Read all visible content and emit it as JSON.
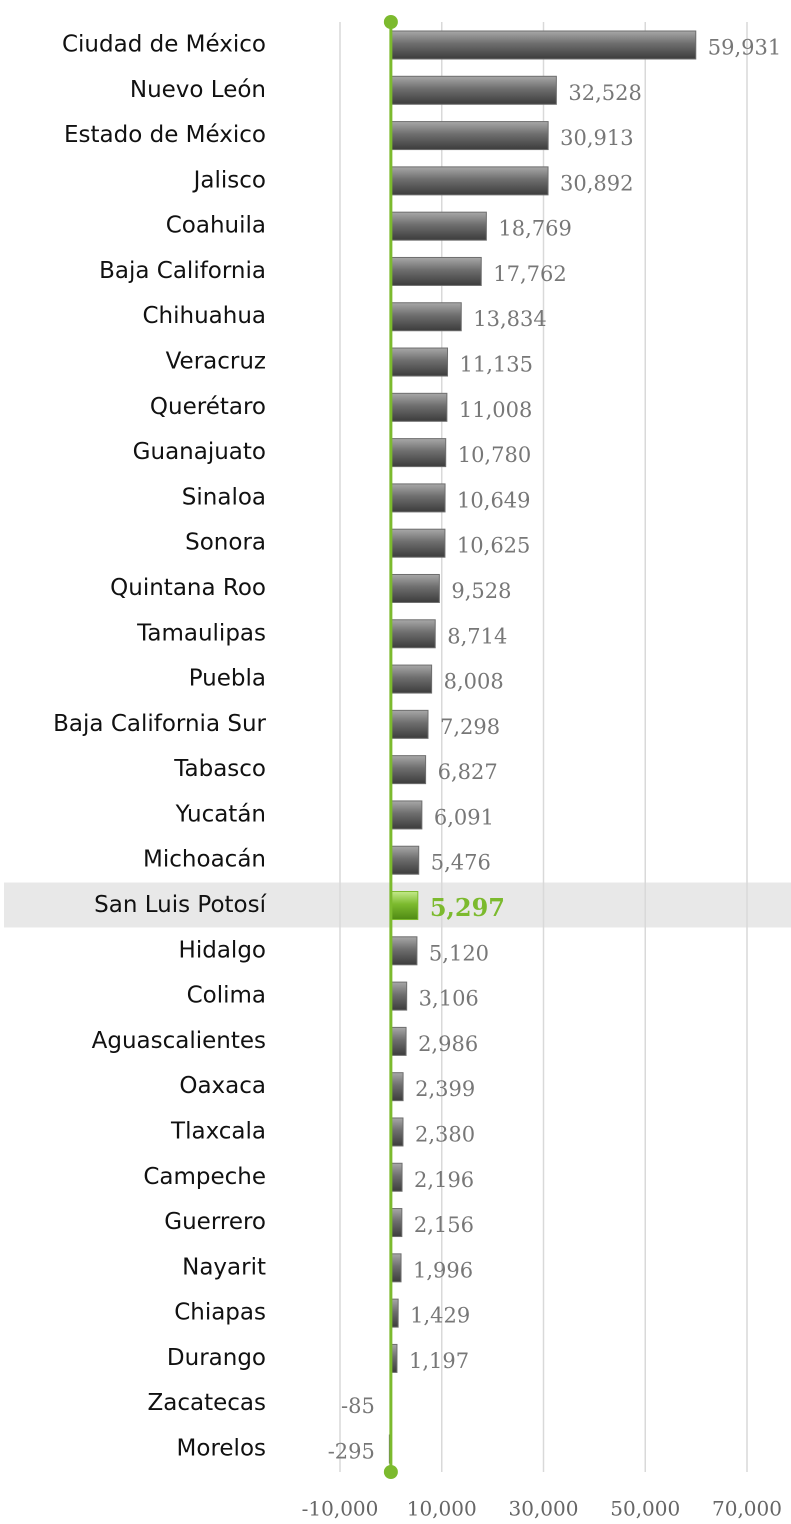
{
  "chart_data": {
    "type": "bar",
    "orientation": "horizontal",
    "categories": [
      "Ciudad de México",
      "Nuevo León",
      "Estado de México",
      "Jalisco",
      "Coahuila",
      "Baja California",
      "Chihuahua",
      "Veracruz",
      "Querétaro",
      "Guanajuato",
      "Sinaloa",
      "Sonora",
      "Quintana Roo",
      "Tamaulipas",
      "Puebla",
      "Baja California Sur",
      "Tabasco",
      "Yucatán",
      "Michoacán",
      "San Luis Potosí",
      "Hidalgo",
      "Colima",
      "Aguascalientes",
      "Oaxaca",
      "Tlaxcala",
      "Campeche",
      "Guerrero",
      "Nayarit",
      "Chiapas",
      "Durango",
      "Zacatecas",
      "Morelos"
    ],
    "values": [
      59931,
      32528,
      30913,
      30892,
      18769,
      17762,
      13834,
      11135,
      11008,
      10780,
      10649,
      10625,
      9528,
      8714,
      8008,
      7298,
      6827,
      6091,
      5476,
      5297,
      5120,
      3106,
      2986,
      2399,
      2380,
      2196,
      2156,
      1996,
      1429,
      1197,
      -85,
      -295
    ],
    "value_labels": [
      "59,931",
      "32,528",
      "30,913",
      "30,892",
      "18,769",
      "17,762",
      "13,834",
      "11,135",
      "11,008",
      "10,780",
      "10,649",
      "10,625",
      "9,528",
      "8,714",
      "8,008",
      "7,298",
      "6,827",
      "6,091",
      "5,476",
      "5,297",
      "5,120",
      "3,106",
      "2,986",
      "2,399",
      "2,380",
      "2,196",
      "2,156",
      "1,996",
      "1,429",
      "1,197",
      "-85",
      "-295"
    ],
    "color": "#6e6e6e",
    "highlight_index": 19,
    "highlight_color": "#7cba2e",
    "axis_color": "#7cba2e",
    "xlim": [
      -10000,
      70000
    ],
    "xticks": [
      {
        "value": -10000,
        "label": "-10,000"
      },
      {
        "value": 10000,
        "label": "10,000"
      },
      {
        "value": 30000,
        "label": "30,000"
      },
      {
        "value": 50000,
        "label": "50,000"
      },
      {
        "value": 70000,
        "label": "70,000"
      }
    ],
    "grid": true
  }
}
